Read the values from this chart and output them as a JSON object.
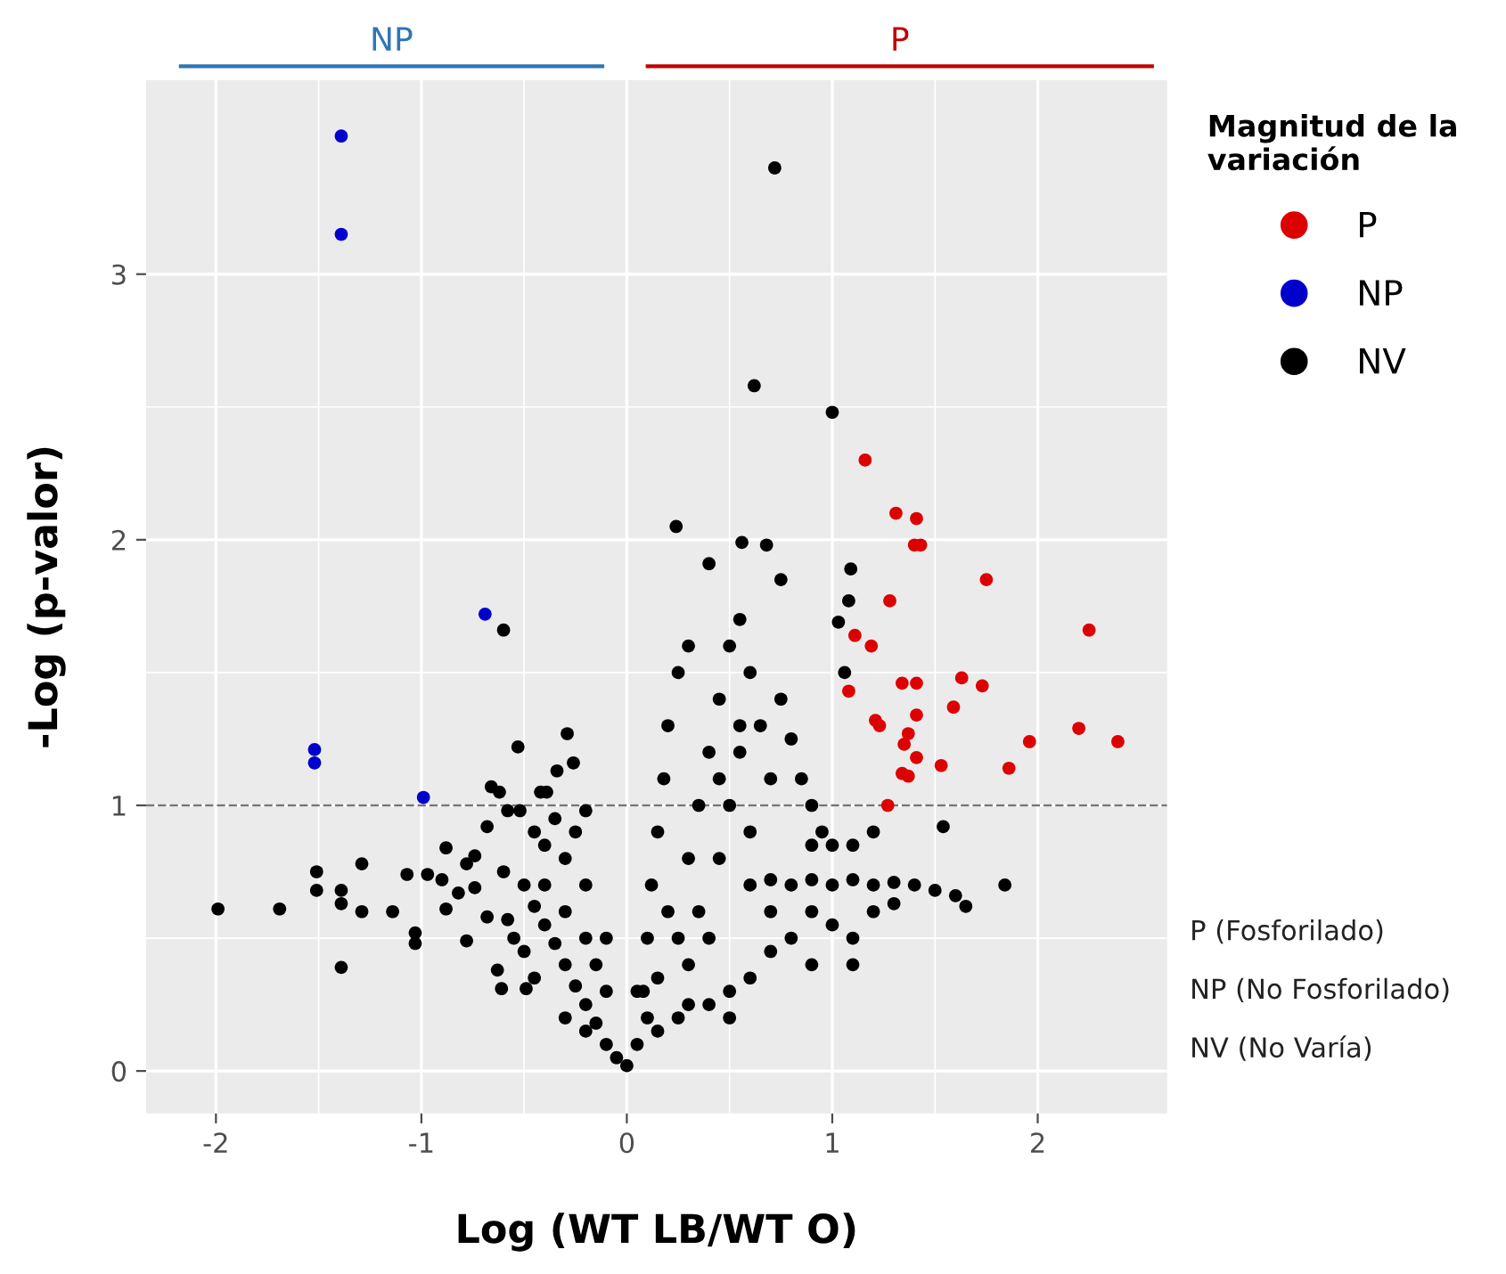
{
  "chart_data": {
    "type": "scatter",
    "xlabel": "Log (WT LB/WT O)",
    "ylabel": "-Log (p-valor)",
    "legend_title": "Magnitud de la variación",
    "xlim": [
      -2.34,
      2.63
    ],
    "ylim": [
      -0.16,
      3.73
    ],
    "xticks": [
      -2,
      -1,
      0,
      1,
      2
    ],
    "yticks": [
      0,
      1,
      2,
      3
    ],
    "grid": true,
    "legend": "right",
    "marker": "circle",
    "ref_lines": [
      {
        "axis": "y",
        "value": 1,
        "label": null,
        "color": "#777777",
        "line_style": "dashed"
      }
    ],
    "annotations": [
      "NP",
      "P",
      "P (Fosforilado)",
      "NP (No Fosforilado)",
      "NV (No Varía)"
    ],
    "series": [
      {
        "name": "P",
        "color": "#dd0000",
        "x": [
          1.16,
          1.31,
          1.41,
          1.4,
          1.43,
          1.75,
          1.28,
          1.11,
          1.19,
          2.25,
          1.08,
          1.34,
          1.41,
          1.63,
          1.73,
          1.59,
          1.21,
          1.23,
          1.41,
          1.37,
          1.35,
          1.41,
          1.53,
          1.96,
          2.2,
          2.39,
          1.86,
          1.34,
          1.37,
          1.27
        ],
        "values": [
          2.3,
          2.1,
          2.08,
          1.98,
          1.98,
          1.85,
          1.77,
          1.64,
          1.6,
          1.66,
          1.43,
          1.46,
          1.46,
          1.48,
          1.45,
          1.37,
          1.32,
          1.3,
          1.34,
          1.27,
          1.23,
          1.18,
          1.15,
          1.24,
          1.29,
          1.24,
          1.14,
          1.12,
          1.11,
          1.0
        ]
      },
      {
        "name": "NP",
        "color": "#0000cc",
        "x": [
          -1.39,
          -1.39,
          -0.69,
          -1.52,
          -1.52,
          -0.99
        ],
        "values": [
          3.52,
          3.15,
          1.72,
          1.21,
          1.16,
          1.03
        ]
      },
      {
        "name": "NV",
        "color": "#000000",
        "x": [
          0.72,
          0.62,
          1.0,
          0.24,
          0.56,
          0.68,
          0.4,
          0.75,
          1.09,
          1.08,
          1.03,
          1.06,
          -0.6,
          1.84,
          1.54,
          -1.99,
          -1.69,
          -1.51,
          -1.51,
          -1.39,
          -1.39,
          -1.29,
          -1.29,
          -1.39,
          -1.14,
          -1.07,
          -1.03,
          -1.03,
          -0.97,
          -0.9,
          -0.88,
          -0.88,
          -0.82,
          -0.78,
          -0.78,
          -0.74,
          -0.74,
          -0.68,
          -0.68,
          -0.66,
          -0.62,
          -0.63,
          -0.61,
          -0.49,
          -0.58,
          -0.53,
          -0.29,
          -0.26,
          -0.34,
          -0.42,
          -0.39,
          -0.58,
          -0.52,
          -0.2,
          0.0,
          -0.05,
          -0.1,
          -0.15,
          -0.2,
          -0.25,
          -0.3,
          -0.35,
          -0.4,
          -0.45,
          -0.5,
          -0.4,
          -0.3,
          -0.2,
          -0.15,
          -0.1,
          -0.3,
          -0.4,
          -0.25,
          -0.35,
          -0.45,
          -0.2,
          -0.1,
          -0.5,
          -0.45,
          -0.55,
          -0.6,
          -0.3,
          -0.2,
          0.05,
          0.08,
          0.1,
          0.12,
          0.15,
          0.18,
          0.2,
          0.25,
          0.3,
          0.2,
          0.3,
          0.35,
          0.4,
          0.45,
          0.5,
          0.55,
          0.6,
          0.55,
          0.5,
          0.45,
          0.4,
          0.3,
          0.25,
          0.15,
          0.6,
          0.7,
          0.65,
          0.75,
          0.8,
          0.85,
          0.9,
          0.95,
          0.7,
          0.6,
          0.7,
          0.8,
          0.9,
          1.0,
          1.1,
          1.2,
          1.3,
          1.4,
          1.5,
          1.6,
          1.65,
          0.9,
          1.0,
          1.1,
          1.2,
          1.3,
          1.1,
          0.8,
          0.7,
          0.6,
          0.5,
          0.9,
          1.0,
          0.3,
          0.4,
          0.5,
          0.9,
          1.1,
          1.2,
          0.35,
          0.25,
          0.15,
          0.1,
          0.05,
          0.45,
          0.55
        ],
        "values": [
          3.4,
          2.58,
          2.48,
          2.05,
          1.99,
          1.98,
          1.91,
          1.85,
          1.89,
          1.77,
          1.69,
          1.5,
          1.66,
          0.7,
          0.92,
          0.61,
          0.61,
          0.75,
          0.68,
          0.68,
          0.63,
          0.78,
          0.6,
          0.39,
          0.6,
          0.74,
          0.52,
          0.48,
          0.74,
          0.72,
          0.84,
          0.61,
          0.67,
          0.78,
          0.49,
          0.81,
          0.69,
          0.92,
          0.58,
          1.07,
          1.05,
          0.38,
          0.31,
          0.31,
          0.57,
          1.22,
          1.27,
          1.16,
          1.13,
          1.05,
          1.05,
          0.98,
          0.98,
          0.98,
          0.02,
          0.05,
          0.1,
          0.18,
          0.25,
          0.32,
          0.4,
          0.48,
          0.55,
          0.62,
          0.7,
          0.7,
          0.6,
          0.5,
          0.4,
          0.3,
          0.8,
          0.85,
          0.9,
          0.95,
          0.9,
          0.7,
          0.5,
          0.45,
          0.35,
          0.5,
          0.75,
          0.2,
          0.15,
          0.1,
          0.3,
          0.5,
          0.7,
          0.9,
          1.1,
          1.3,
          1.5,
          1.6,
          0.6,
          0.8,
          1.0,
          1.2,
          1.4,
          1.6,
          1.7,
          1.5,
          1.2,
          1.0,
          0.8,
          0.5,
          0.4,
          0.2,
          0.15,
          0.9,
          1.1,
          1.3,
          1.4,
          1.25,
          1.1,
          1.0,
          0.9,
          0.6,
          0.7,
          0.72,
          0.7,
          0.72,
          0.7,
          0.72,
          0.7,
          0.71,
          0.7,
          0.68,
          0.66,
          0.62,
          0.6,
          0.55,
          0.5,
          0.6,
          0.63,
          0.4,
          0.5,
          0.45,
          0.35,
          0.3,
          0.85,
          0.85,
          0.25,
          0.25,
          0.2,
          0.4,
          0.85,
          0.9,
          0.6,
          0.5,
          0.35,
          0.2,
          0.3,
          1.1,
          1.3
        ]
      }
    ]
  }
}
